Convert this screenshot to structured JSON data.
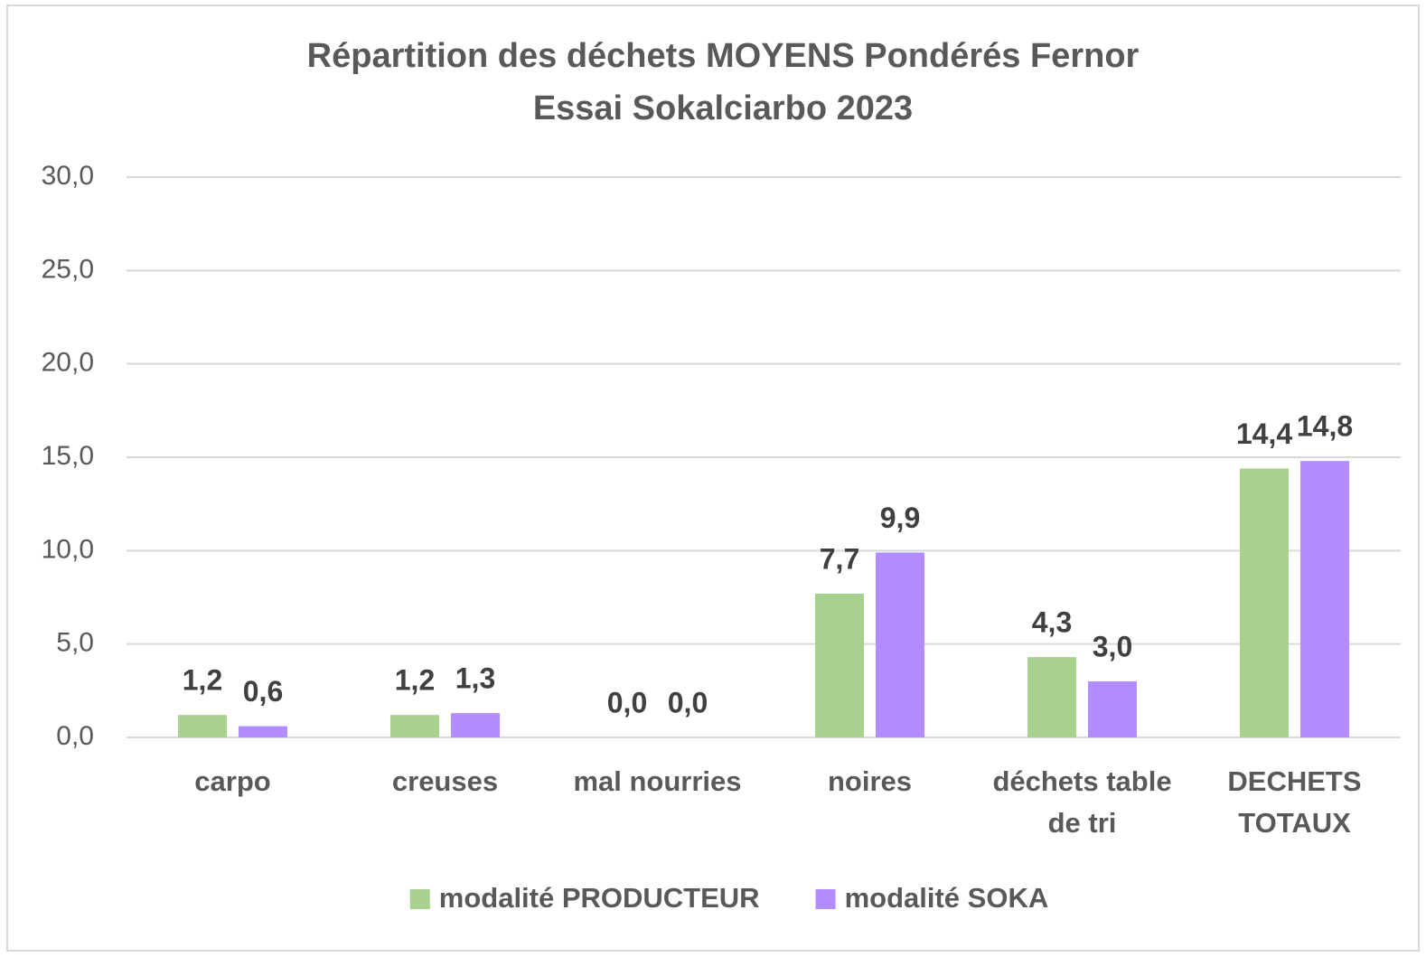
{
  "chart_data": {
    "type": "bar",
    "title": "Répartition des déchets MOYENS Pondérés Fernor",
    "subtitle": "Essai Sokalciarbo 2023",
    "categories": [
      "carpo",
      "creuses",
      "mal nourries",
      "noires",
      "déchets table de tri",
      "DECHETS TOTAUX"
    ],
    "series": [
      {
        "name": "modalité PRODUCTEUR",
        "color": "#a9d18e",
        "values": [
          1.2,
          1.2,
          0.0,
          7.7,
          4.3,
          14.4
        ],
        "value_labels": [
          "1,2",
          "1,2",
          "0,0",
          "7,7",
          "4,3",
          "14,4"
        ]
      },
      {
        "name": "modalité SOKA",
        "color": "#b38cff",
        "values": [
          0.6,
          1.3,
          0.0,
          9.9,
          3.0,
          14.8
        ],
        "value_labels": [
          "0,6",
          "1,3",
          "0,0",
          "9,9",
          "3,0",
          "14,8"
        ]
      }
    ],
    "ylim": [
      0,
      30
    ],
    "yticks": [
      {
        "value": 0,
        "label": "0,0"
      },
      {
        "value": 5,
        "label": "5,0"
      },
      {
        "value": 10,
        "label": "10,0"
      },
      {
        "value": 15,
        "label": "15,0"
      },
      {
        "value": 20,
        "label": "20,0"
      },
      {
        "value": 25,
        "label": "25,0"
      },
      {
        "value": 30,
        "label": "30,0"
      }
    ],
    "grid": true,
    "legend": "bottom"
  }
}
